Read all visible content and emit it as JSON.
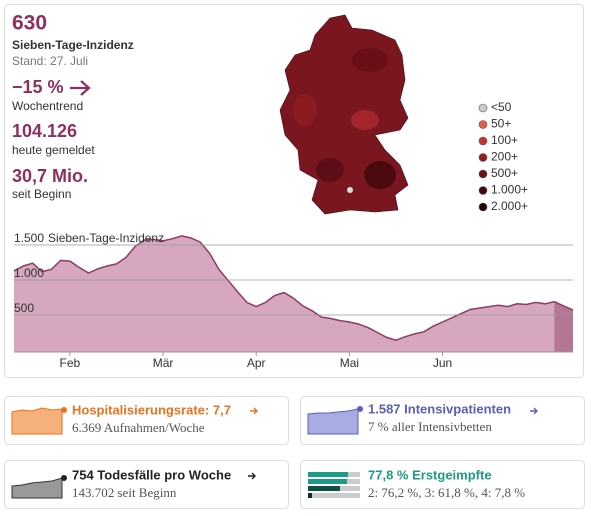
{
  "summary": {
    "incidence": "630",
    "incidence_label": "Sieben-Tage-Inzidenz",
    "date": "Stand: 27. Juli",
    "trend": "−15 %",
    "trend_label": "Wochentrend",
    "today": "104.126",
    "today_label": "heute gemeldet",
    "total": "30,7 Mio.",
    "total_label": "seit Beginn"
  },
  "map_legend": [
    {
      "label": "<50",
      "color": "#cccccc"
    },
    {
      "label": "50+",
      "color": "#e0604d"
    },
    {
      "label": "100+",
      "color": "#c8302c"
    },
    {
      "label": "200+",
      "color": "#9a1c22"
    },
    {
      "label": "500+",
      "color": "#6e1016"
    },
    {
      "label": "1.000+",
      "color": "#43080d"
    },
    {
      "label": "2.000+",
      "color": "#1e0406"
    }
  ],
  "chart": {
    "type": "area",
    "ylabel": "Sieben-Tage-Inzidenz",
    "categories": [
      null,
      null,
      null,
      null,
      null,
      null,
      "Feb",
      null,
      null,
      null,
      null,
      null,
      null,
      null,
      null,
      null,
      "Mär",
      null,
      null,
      null,
      null,
      null,
      null,
      null,
      null,
      null,
      "Apr",
      null,
      null,
      null,
      null,
      null,
      null,
      null,
      null,
      null,
      "Mai",
      null,
      null,
      null,
      null,
      null,
      null,
      null,
      null,
      null,
      "Jun",
      null,
      null,
      null,
      null,
      null,
      null,
      null,
      null,
      null,
      null,
      null,
      null,
      null,
      null
    ],
    "values": [
      1130,
      1200,
      1240,
      1120,
      1150,
      1280,
      1270,
      1180,
      1100,
      1160,
      1200,
      1230,
      1320,
      1480,
      1570,
      1580,
      1560,
      1590,
      1630,
      1600,
      1540,
      1380,
      1150,
      990,
      830,
      680,
      620,
      680,
      780,
      820,
      740,
      630,
      560,
      470,
      450,
      420,
      400,
      370,
      320,
      250,
      180,
      140,
      190,
      230,
      260,
      340,
      400,
      460,
      520,
      580,
      600,
      620,
      640,
      620,
      660,
      650,
      680,
      660,
      690,
      630,
      570
    ],
    "ylim": [
      0,
      1500
    ],
    "yticks": [
      {
        "value": 500,
        "label": "500"
      },
      {
        "value": 1000,
        "label": "1.000"
      },
      {
        "value": 1500,
        "label": "1.500"
      }
    ],
    "color": "#d6a7bf",
    "line_color": "#8e3b63",
    "grid": true
  },
  "cards": [
    {
      "title": "Hospitalisierungsrate: 7,7",
      "subtitle": "6.369 Aufnahmen/Woche",
      "color": "#e8731e"
    },
    {
      "title": "1.587 Intensivpatienten",
      "subtitle": "7 % aller Intensivbetten",
      "color": "#5b5fb8"
    },
    {
      "title": "754 Todesfälle pro Woche",
      "subtitle": "143.702 seit Beginn",
      "color": "#222222"
    },
    {
      "title": "77,8 % Erstgeimpfte",
      "subtitle": "2: 76,2 %, 3: 61,8 %, 4: 7,8 %",
      "color": "#1f9a87"
    }
  ]
}
